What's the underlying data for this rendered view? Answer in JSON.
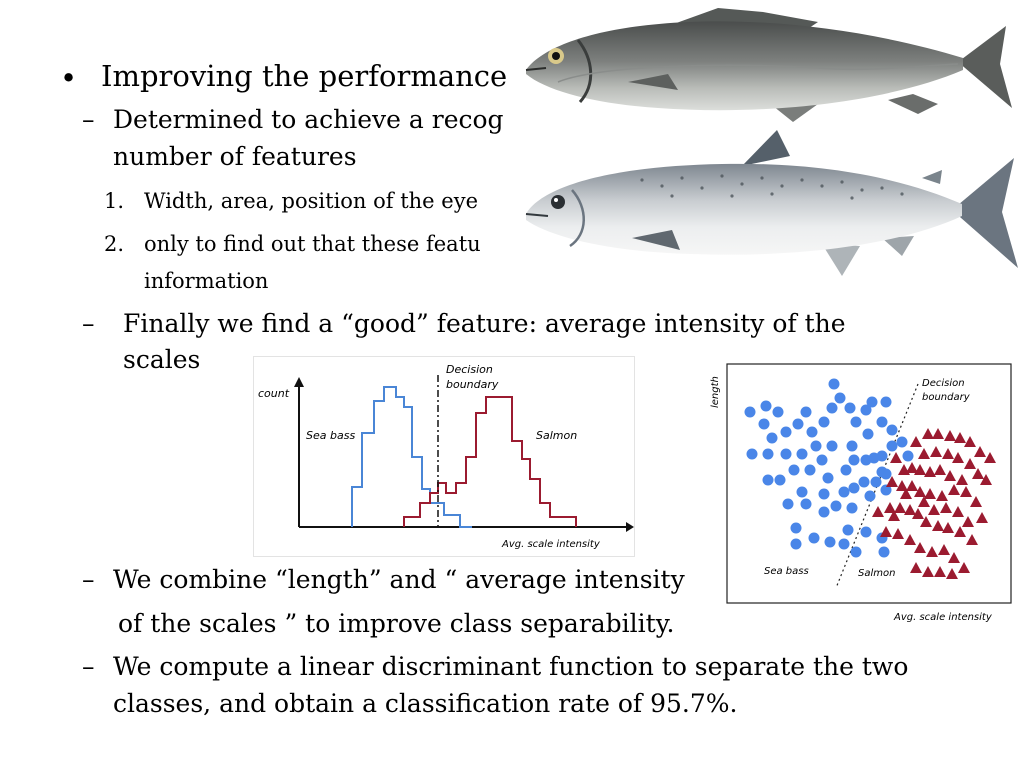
{
  "slide": {
    "bullet1": {
      "marker": "•",
      "text": "Improving the performance"
    },
    "sub1": {
      "marker": "–",
      "line1": "Determined to achieve a recog",
      "line2": "number of features"
    },
    "sub1_items": [
      {
        "marker": "1.",
        "text": "Width, area, position of the eye"
      },
      {
        "marker": "2.",
        "line1": "only to find out that these featu",
        "line2": "information"
      }
    ],
    "sub2": {
      "marker": "–",
      "line1": "Finally we find a “good” feature: average intensity of the",
      "line2": "scales"
    },
    "sub3": {
      "marker": "–",
      "line1": "We combine “length” and “ average intensity",
      "line2": "of the scales ” to improve class separability."
    },
    "sub4": {
      "marker": "–",
      "line1": "We compute a linear discriminant function to separate the two",
      "line2": "classes, and obtain a classification rate of 95.7%."
    }
  },
  "histogram": {
    "ylabel": "count",
    "decision_label_1": "Decision",
    "decision_label_2": "boundary",
    "sea_bass_label": "Sea bass",
    "salmon_label": "Salmon",
    "xlabel": "Avg. scale intensity",
    "sea_bass_color": "#4a86d6",
    "salmon_color": "#9b1b30"
  },
  "scatter": {
    "ylabel": "length",
    "decision_label_1": "Decision",
    "decision_label_2": "boundary",
    "sea_bass_label": "Sea bass",
    "salmon_label": "Salmon",
    "xlabel": "Avg. scale intensity",
    "sea_bass_color": "#4a86e8",
    "salmon_color": "#9b1b30"
  },
  "images": {
    "sea_bass": "sea-bass-fish-icon",
    "salmon": "salmon-fish-icon"
  }
}
